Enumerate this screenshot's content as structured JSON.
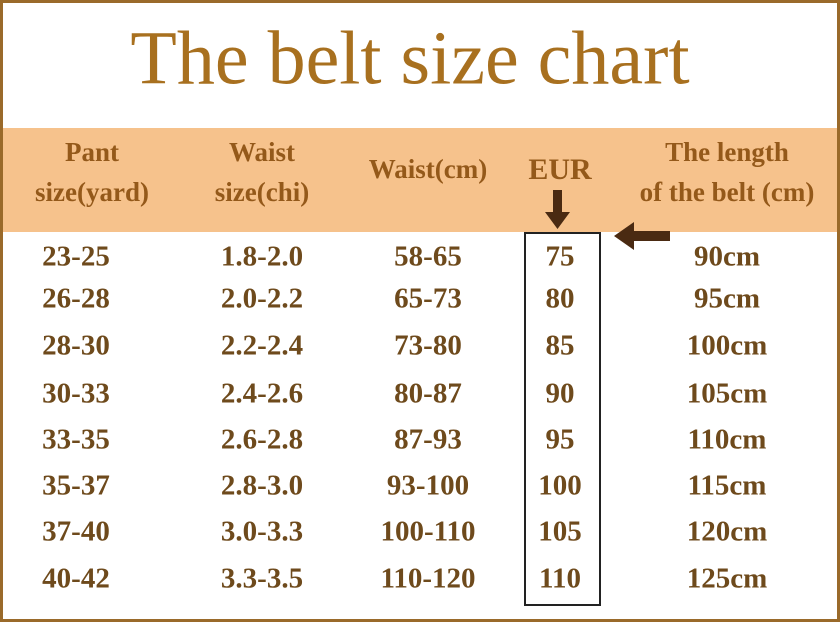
{
  "header": {
    "title": "The belt size chart"
  },
  "table": {
    "columns": [
      [
        "Pant",
        "size(yard)"
      ],
      [
        "Waist",
        "size(chi)"
      ],
      [
        "Waist(cm)"
      ],
      [
        "EUR"
      ],
      [
        "The length",
        "of the belt (cm)"
      ]
    ],
    "rows": [
      [
        "23-25",
        "1.8-2.0",
        "58-65",
        "75",
        "90cm"
      ],
      [
        "26-28",
        "2.0-2.2",
        "65-73",
        "80",
        "95cm"
      ],
      [
        "28-30",
        "2.2-2.4",
        "73-80",
        "85",
        "100cm"
      ],
      [
        "30-33",
        "2.4-2.6",
        "80-87",
        "90",
        "105cm"
      ],
      [
        "33-35",
        "2.6-2.8",
        "87-93",
        "95",
        "110cm"
      ],
      [
        "35-37",
        "2.8-3.0",
        "93-100",
        "100",
        "115cm"
      ],
      [
        "37-40",
        "3.0-3.3",
        "100-110",
        "105",
        "120cm"
      ],
      [
        "40-42",
        "3.3-3.5",
        "110-120",
        "110",
        "125cm"
      ]
    ]
  }
}
